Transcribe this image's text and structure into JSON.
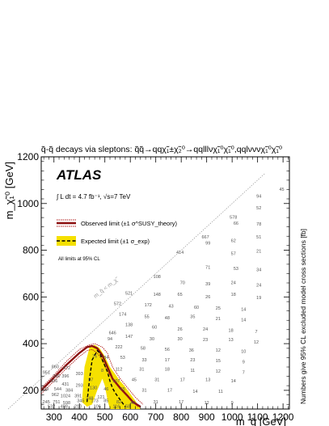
{
  "chart_data": {
    "type": "scatter",
    "title": "q̃-q̃ decays via sleptons: q̃q̃→qqχ̃₁±χ̃₂⁰→qqlllνχ̃₁⁰χ̃₁⁰,qqlνννχ̃₁⁰χ̃₁⁰",
    "xlabel": "m_q̃ [GeV]",
    "ylabel": "m_χ̃₁⁰ [GeV]",
    "zlabel": "Numbers give 95% CL excluded model cross sections [fb]",
    "xlim": [
      250,
      1225
    ],
    "ylim": [
      120,
      1200
    ],
    "xticks": [
      300,
      400,
      500,
      600,
      700,
      800,
      900,
      1000,
      1100,
      1200
    ],
    "yticks": [
      200,
      400,
      600,
      800,
      1000,
      1200
    ],
    "grid": false,
    "legend_position": "upper-left",
    "brand": "ATLAS",
    "lumi_text": "∫ L dt = 4.7 fb⁻¹, √s=7 TeV",
    "cl_note": "All limits at 95% CL",
    "diagonal_label": "m_q̃ < m_χ̃",
    "legend": [
      {
        "label": "Observed limit (±1 σ^SUSY_theory)",
        "style": "observed"
      },
      {
        "label": "Expected limit (±1 σ_exp)",
        "style": "expected"
      }
    ],
    "series": [
      {
        "name": "Observed limit",
        "color": "#8b0f0f",
        "x": [
          250,
          300,
          350,
          400,
          430,
          450,
          470,
          490,
          510,
          530,
          560,
          590,
          610,
          640
        ],
        "y": [
          200,
          255,
          310,
          360,
          385,
          390,
          380,
          350,
          300,
          250,
          210,
          175,
          150,
          130
        ]
      },
      {
        "name": "Observed limit +1σ theory",
        "color": "#b01e1e",
        "x": [
          250,
          300,
          350,
          400,
          440,
          460,
          490,
          510,
          530,
          560,
          590,
          620,
          650
        ],
        "y": [
          210,
          265,
          325,
          375,
          395,
          400,
          385,
          360,
          300,
          250,
          210,
          170,
          140
        ]
      },
      {
        "name": "Observed limit -1σ theory",
        "color": "#b01e1e",
        "x": [
          250,
          300,
          350,
          400,
          430,
          450,
          470,
          490,
          510,
          540,
          570,
          600,
          630
        ],
        "y": [
          185,
          240,
          295,
          345,
          370,
          375,
          360,
          330,
          280,
          235,
          195,
          160,
          130
        ]
      },
      {
        "name": "Expected limit",
        "color": "#000000",
        "x": [
          430,
          440,
          450,
          470,
          480,
          490,
          510,
          520,
          530,
          540,
          560,
          580
        ],
        "y": [
          150,
          250,
          330,
          370,
          360,
          330,
          280,
          240,
          210,
          190,
          160,
          130
        ]
      }
    ],
    "band": {
      "name": "Expected ±1σ_exp",
      "color": "#f5e000",
      "upper_x": [
        410,
        420,
        440,
        460,
        480,
        500,
        520,
        540,
        560,
        580,
        600,
        620,
        640
      ],
      "upper_y": [
        150,
        300,
        385,
        395,
        380,
        345,
        300,
        270,
        240,
        215,
        185,
        155,
        120
      ],
      "lower_x": [
        410,
        430,
        450,
        470,
        490,
        500,
        510,
        520
      ],
      "lower_y": [
        150,
        130,
        140,
        200,
        250,
        220,
        160,
        120
      ]
    },
    "cells": [
      {
        "x": 1195,
        "y": 1055,
        "v": "45"
      },
      {
        "x": 1105,
        "y": 1025,
        "v": "94"
      },
      {
        "x": 1005,
        "y": 935,
        "v": "578"
      },
      {
        "x": 1105,
        "y": 975,
        "v": "52"
      },
      {
        "x": 1015,
        "y": 910,
        "v": "66"
      },
      {
        "x": 1105,
        "y": 905,
        "v": "78"
      },
      {
        "x": 895,
        "y": 850,
        "v": "667"
      },
      {
        "x": 905,
        "y": 825,
        "v": "99"
      },
      {
        "x": 1005,
        "y": 835,
        "v": "62"
      },
      {
        "x": 1105,
        "y": 850,
        "v": "51"
      },
      {
        "x": 795,
        "y": 785,
        "v": "414"
      },
      {
        "x": 1005,
        "y": 780,
        "v": "57"
      },
      {
        "x": 1105,
        "y": 790,
        "v": "21"
      },
      {
        "x": 905,
        "y": 720,
        "v": "71"
      },
      {
        "x": 1015,
        "y": 715,
        "v": "53"
      },
      {
        "x": 1105,
        "y": 710,
        "v": "34"
      },
      {
        "x": 705,
        "y": 680,
        "v": "108"
      },
      {
        "x": 805,
        "y": 655,
        "v": "70"
      },
      {
        "x": 905,
        "y": 650,
        "v": "39"
      },
      {
        "x": 1005,
        "y": 655,
        "v": "24"
      },
      {
        "x": 1105,
        "y": 645,
        "v": "24"
      },
      {
        "x": 595,
        "y": 610,
        "v": "521"
      },
      {
        "x": 705,
        "y": 605,
        "v": "148"
      },
      {
        "x": 795,
        "y": 605,
        "v": "65"
      },
      {
        "x": 905,
        "y": 595,
        "v": "26"
      },
      {
        "x": 1005,
        "y": 605,
        "v": "18"
      },
      {
        "x": 1105,
        "y": 590,
        "v": "19"
      },
      {
        "x": 550,
        "y": 565,
        "v": "572"
      },
      {
        "x": 670,
        "y": 560,
        "v": "172"
      },
      {
        "x": 760,
        "y": 555,
        "v": "43"
      },
      {
        "x": 860,
        "y": 550,
        "v": "60"
      },
      {
        "x": 945,
        "y": 545,
        "v": "25"
      },
      {
        "x": 1045,
        "y": 540,
        "v": "14"
      },
      {
        "x": 570,
        "y": 520,
        "v": "174"
      },
      {
        "x": 665,
        "y": 510,
        "v": "55"
      },
      {
        "x": 745,
        "y": 505,
        "v": "48"
      },
      {
        "x": 845,
        "y": 510,
        "v": "35"
      },
      {
        "x": 945,
        "y": 500,
        "v": "21"
      },
      {
        "x": 1045,
        "y": 495,
        "v": "14"
      },
      {
        "x": 595,
        "y": 475,
        "v": "138"
      },
      {
        "x": 695,
        "y": 465,
        "v": "60"
      },
      {
        "x": 795,
        "y": 455,
        "v": "26"
      },
      {
        "x": 895,
        "y": 455,
        "v": "24"
      },
      {
        "x": 995,
        "y": 450,
        "v": "18"
      },
      {
        "x": 1095,
        "y": 445,
        "v": "7"
      },
      {
        "x": 530,
        "y": 440,
        "v": "646"
      },
      {
        "x": 520,
        "y": 415,
        "v": "94"
      },
      {
        "x": 595,
        "y": 425,
        "v": "147"
      },
      {
        "x": 685,
        "y": 415,
        "v": "30"
      },
      {
        "x": 795,
        "y": 415,
        "v": "30"
      },
      {
        "x": 895,
        "y": 410,
        "v": "23"
      },
      {
        "x": 995,
        "y": 410,
        "v": "13"
      },
      {
        "x": 1095,
        "y": 400,
        "v": "12"
      },
      {
        "x": 555,
        "y": 380,
        "v": "222"
      },
      {
        "x": 650,
        "y": 375,
        "v": "58"
      },
      {
        "x": 745,
        "y": 370,
        "v": "56"
      },
      {
        "x": 840,
        "y": 365,
        "v": "36"
      },
      {
        "x": 945,
        "y": 365,
        "v": "12"
      },
      {
        "x": 1045,
        "y": 360,
        "v": "10"
      },
      {
        "x": 460,
        "y": 340,
        "v": "76"
      },
      {
        "x": 505,
        "y": 335,
        "v": "84"
      },
      {
        "x": 570,
        "y": 335,
        "v": "53"
      },
      {
        "x": 655,
        "y": 325,
        "v": "33"
      },
      {
        "x": 745,
        "y": 325,
        "v": "17"
      },
      {
        "x": 845,
        "y": 325,
        "v": "23"
      },
      {
        "x": 945,
        "y": 320,
        "v": "15"
      },
      {
        "x": 1045,
        "y": 315,
        "v": "9"
      },
      {
        "x": 490,
        "y": 280,
        "v": "8"
      },
      {
        "x": 555,
        "y": 285,
        "v": "112"
      },
      {
        "x": 645,
        "y": 285,
        "v": "31"
      },
      {
        "x": 745,
        "y": 285,
        "v": "18"
      },
      {
        "x": 845,
        "y": 280,
        "v": "11"
      },
      {
        "x": 945,
        "y": 275,
        "v": "12"
      },
      {
        "x": 1045,
        "y": 270,
        "v": "7"
      },
      {
        "x": 305,
        "y": 295,
        "v": "860"
      },
      {
        "x": 350,
        "y": 290,
        "v": "472"
      },
      {
        "x": 270,
        "y": 270,
        "v": "951"
      },
      {
        "x": 310,
        "y": 255,
        "v": "360"
      },
      {
        "x": 345,
        "y": 255,
        "v": "396"
      },
      {
        "x": 400,
        "y": 265,
        "v": "393"
      },
      {
        "x": 300,
        "y": 235,
        "v": "506"
      },
      {
        "x": 345,
        "y": 220,
        "v": "431"
      },
      {
        "x": 445,
        "y": 240,
        "v": "97"
      },
      {
        "x": 545,
        "y": 235,
        "v": "107"
      },
      {
        "x": 615,
        "y": 240,
        "v": "45"
      },
      {
        "x": 705,
        "y": 240,
        "v": "31"
      },
      {
        "x": 805,
        "y": 240,
        "v": "17"
      },
      {
        "x": 905,
        "y": 240,
        "v": "13"
      },
      {
        "x": 1005,
        "y": 235,
        "v": "14"
      },
      {
        "x": 265,
        "y": 200,
        "v": "829"
      },
      {
        "x": 315,
        "y": 200,
        "v": "544"
      },
      {
        "x": 360,
        "y": 195,
        "v": "384"
      },
      {
        "x": 400,
        "y": 215,
        "v": "293"
      },
      {
        "x": 455,
        "y": 205,
        "v": "130"
      },
      {
        "x": 505,
        "y": 200,
        "v": "46"
      },
      {
        "x": 570,
        "y": 200,
        "v": "65"
      },
      {
        "x": 655,
        "y": 195,
        "v": "31"
      },
      {
        "x": 755,
        "y": 195,
        "v": "17"
      },
      {
        "x": 855,
        "y": 190,
        "v": "14"
      },
      {
        "x": 955,
        "y": 190,
        "v": "11"
      },
      {
        "x": 305,
        "y": 175,
        "v": "962"
      },
      {
        "x": 345,
        "y": 170,
        "v": "1024"
      },
      {
        "x": 395,
        "y": 170,
        "v": "391"
      },
      {
        "x": 440,
        "y": 160,
        "v": "248"
      },
      {
        "x": 485,
        "y": 165,
        "v": "121"
      },
      {
        "x": 265,
        "y": 145,
        "v": "1245"
      },
      {
        "x": 310,
        "y": 145,
        "v": "751"
      },
      {
        "x": 350,
        "y": 140,
        "v": "598"
      },
      {
        "x": 405,
        "y": 150,
        "v": "345"
      },
      {
        "x": 460,
        "y": 150,
        "v": "173"
      },
      {
        "x": 505,
        "y": 150,
        "v": "85"
      },
      {
        "x": 555,
        "y": 145,
        "v": "82"
      },
      {
        "x": 610,
        "y": 140,
        "v": "40"
      },
      {
        "x": 700,
        "y": 145,
        "v": "31"
      },
      {
        "x": 800,
        "y": 145,
        "v": "17"
      },
      {
        "x": 900,
        "y": 140,
        "v": "12"
      },
      {
        "x": 1000,
        "y": 140,
        "v": "9"
      },
      {
        "x": 290,
        "y": 125,
        "v": "532"
      },
      {
        "x": 340,
        "y": 125,
        "v": "488"
      },
      {
        "x": 395,
        "y": 125,
        "v": "210"
      },
      {
        "x": 470,
        "y": 125,
        "v": "106"
      },
      {
        "x": 545,
        "y": 125,
        "v": "116"
      },
      {
        "x": 590,
        "y": 125,
        "v": "58"
      }
    ]
  }
}
